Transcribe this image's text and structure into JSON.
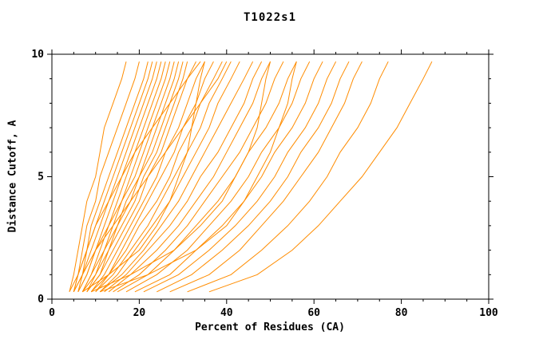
{
  "title": "T1022s1",
  "chart_data": {
    "type": "line",
    "title": "T1022s1",
    "xlabel": "Percent of Residues (CA)",
    "ylabel": "Distance Cutoff, A",
    "xlim": [
      0,
      100
    ],
    "ylim": [
      0,
      10
    ],
    "x_ticks": [
      0,
      20,
      40,
      60,
      80,
      100
    ],
    "y_ticks": [
      0,
      5,
      10
    ],
    "x_minor_step": 5,
    "y_minor_step": 1,
    "grid": "off",
    "legend": "none",
    "line_color": "#ff8c00",
    "axis_color": "#000000",
    "background": "#ffffff",
    "y_levels": [
      0.3,
      1,
      2,
      3,
      4,
      5,
      6,
      7,
      8,
      9,
      9.7
    ],
    "curves": [
      [
        4,
        5,
        6,
        7,
        8,
        10,
        11,
        12,
        14,
        16,
        17
      ],
      [
        5,
        6,
        7,
        8,
        10,
        11,
        13,
        15,
        17,
        19,
        20
      ],
      [
        5,
        6,
        8,
        9,
        11,
        13,
        15,
        17,
        19,
        21,
        22
      ],
      [
        5,
        7,
        8,
        10,
        12,
        14,
        16,
        18,
        20,
        22,
        23
      ],
      [
        6,
        7,
        9,
        11,
        13,
        15,
        17,
        19,
        21,
        23,
        24
      ],
      [
        6,
        8,
        10,
        12,
        14,
        16,
        18,
        20,
        22,
        24,
        25
      ],
      [
        6,
        8,
        10,
        13,
        15,
        17,
        19,
        21,
        23,
        25,
        26
      ],
      [
        7,
        9,
        11,
        13,
        16,
        18,
        20,
        22,
        24,
        26,
        27
      ],
      [
        7,
        9,
        12,
        14,
        16,
        19,
        21,
        23,
        25,
        27,
        28
      ],
      [
        7,
        10,
        12,
        15,
        17,
        20,
        22,
        24,
        26,
        28,
        29
      ],
      [
        8,
        10,
        13,
        15,
        18,
        20,
        23,
        25,
        27,
        29,
        30
      ],
      [
        8,
        11,
        13,
        16,
        19,
        21,
        24,
        26,
        28,
        30,
        31
      ],
      [
        8,
        11,
        14,
        17,
        20,
        22,
        25,
        27,
        29,
        31,
        33
      ],
      [
        9,
        12,
        15,
        18,
        21,
        24,
        26,
        29,
        31,
        33,
        35
      ],
      [
        9,
        13,
        16,
        19,
        22,
        25,
        28,
        30,
        33,
        35,
        37
      ],
      [
        10,
        13,
        17,
        20,
        24,
        27,
        29,
        32,
        34,
        37,
        39
      ],
      [
        10,
        14,
        18,
        22,
        25,
        28,
        31,
        34,
        36,
        39,
        41
      ],
      [
        11,
        15,
        19,
        23,
        27,
        30,
        33,
        36,
        38,
        41,
        43
      ],
      [
        11,
        16,
        21,
        25,
        29,
        32,
        35,
        38,
        41,
        44,
        46
      ],
      [
        12,
        17,
        22,
        27,
        31,
        34,
        38,
        41,
        44,
        46,
        48
      ],
      [
        13,
        18,
        24,
        29,
        33,
        37,
        40,
        43,
        46,
        48,
        50
      ],
      [
        14,
        20,
        26,
        31,
        35,
        39,
        43,
        46,
        49,
        51,
        53
      ],
      [
        15,
        22,
        28,
        33,
        38,
        42,
        45,
        49,
        52,
        54,
        56
      ],
      [
        17,
        24,
        31,
        36,
        41,
        45,
        48,
        52,
        55,
        57,
        59
      ],
      [
        19,
        27,
        33,
        39,
        44,
        48,
        51,
        55,
        58,
        60,
        62
      ],
      [
        21,
        29,
        36,
        42,
        47,
        51,
        54,
        58,
        61,
        63,
        65
      ],
      [
        24,
        32,
        39,
        45,
        50,
        54,
        57,
        61,
        64,
        66,
        68
      ],
      [
        27,
        36,
        43,
        48,
        53,
        57,
        61,
        64,
        67,
        69,
        71
      ],
      [
        31,
        41,
        48,
        54,
        59,
        63,
        66,
        70,
        73,
        75,
        77
      ],
      [
        36,
        47,
        55,
        61,
        66,
        71,
        75,
        79,
        82,
        85,
        87
      ],
      [
        9,
        18,
        28,
        34,
        39,
        42,
        45,
        47,
        48,
        49,
        50
      ],
      [
        11,
        22,
        33,
        40,
        44,
        47,
        50,
        52,
        54,
        55,
        56
      ],
      [
        7,
        13,
        20,
        24,
        27,
        29,
        31,
        32,
        33,
        34,
        35
      ],
      [
        4,
        6,
        8,
        10,
        13,
        16,
        19,
        23,
        27,
        31,
        34
      ],
      [
        5,
        7,
        10,
        14,
        18,
        22,
        26,
        30,
        34,
        38,
        40
      ]
    ]
  }
}
